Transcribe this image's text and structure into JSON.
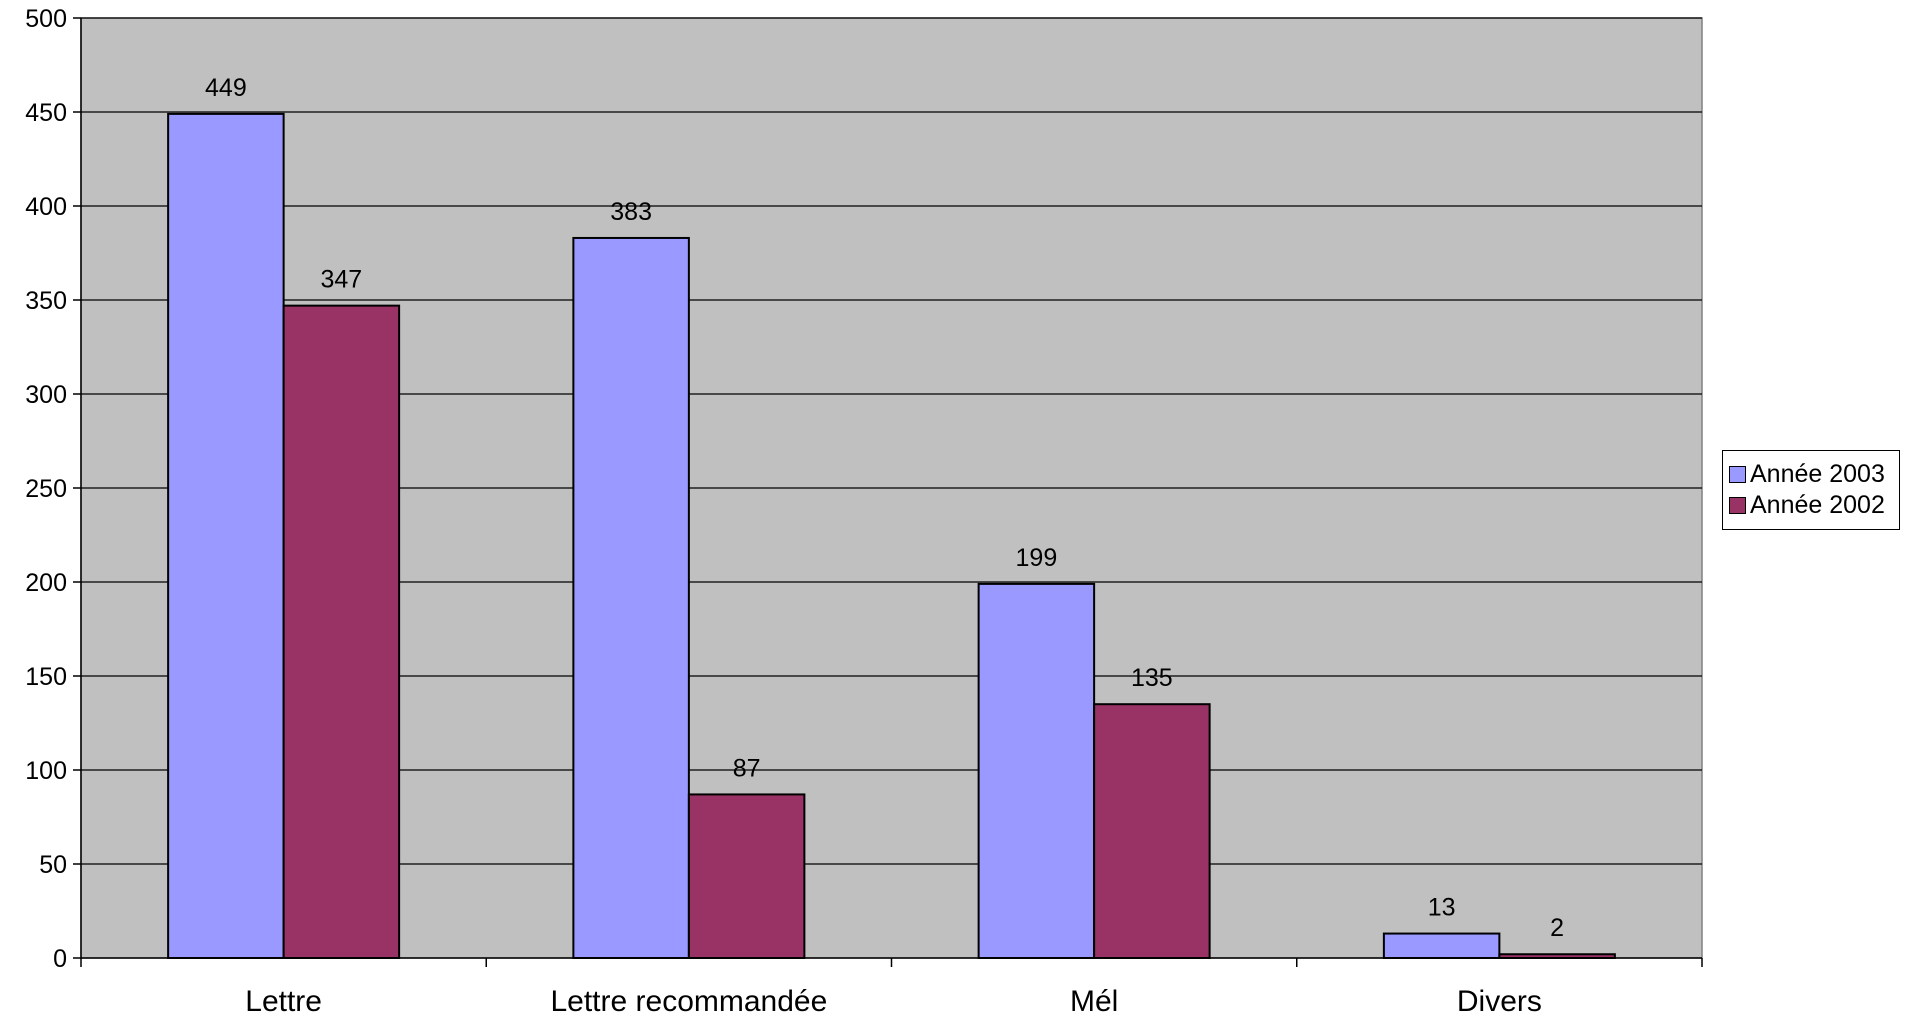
{
  "chart_data": {
    "type": "bar",
    "categories": [
      "Lettre",
      "Lettre recommandée",
      "Mél",
      "Divers"
    ],
    "series": [
      {
        "name": "Année 2003",
        "values": [
          449,
          383,
          199,
          13
        ],
        "color": "#9999ff"
      },
      {
        "name": "Année 2002",
        "values": [
          347,
          87,
          135,
          2
        ],
        "color": "#993366"
      }
    ],
    "ylim": [
      0,
      500
    ],
    "yticks": [
      0,
      50,
      100,
      150,
      200,
      250,
      300,
      350,
      400,
      450,
      500
    ],
    "grid": true,
    "legend_position": "right",
    "data_labels": true,
    "plot_background": "#c0c0c0"
  }
}
